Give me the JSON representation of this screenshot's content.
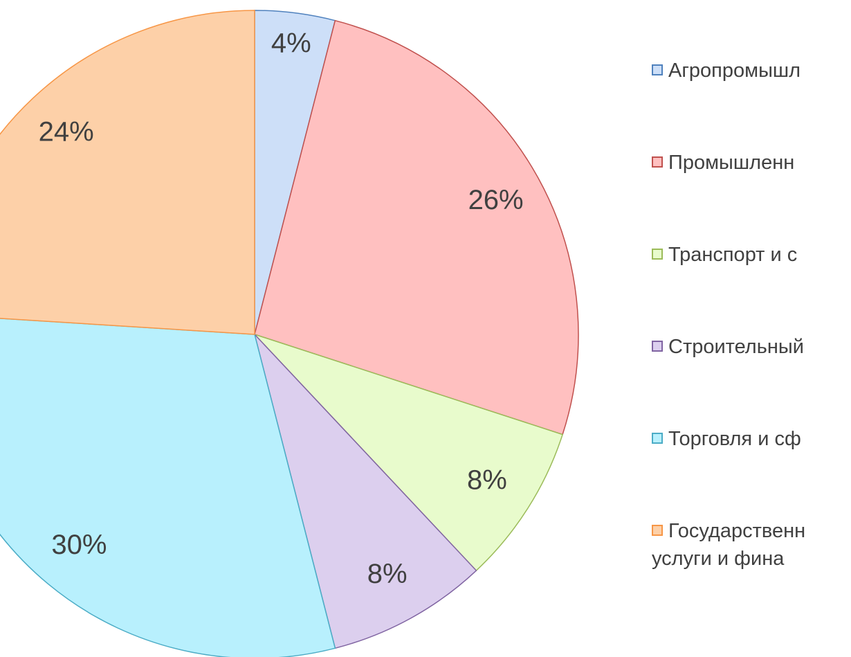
{
  "chart_data": {
    "type": "pie",
    "categories": [
      "Агропромышл",
      "Промышленн",
      "Транспорт и с",
      "Строительный",
      "Торговля и сф",
      "Государственн\nуслуги и фина"
    ],
    "values": [
      4,
      26,
      8,
      8,
      30,
      24
    ],
    "value_labels": [
      "4%",
      "26%",
      "8%",
      "8%",
      "30%",
      "24%"
    ],
    "colors": [
      "#cddff8",
      "#ffc0c0",
      "#e8fbcc",
      "#dccfee",
      "#b8f0fd",
      "#fdd0a8"
    ],
    "border_colors": [
      "#4f81bd",
      "#c0504d",
      "#9bbb59",
      "#8064a2",
      "#4bacc6",
      "#f79646"
    ],
    "legend": "right"
  }
}
